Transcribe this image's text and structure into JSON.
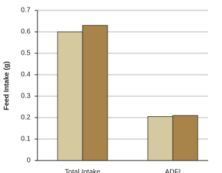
{
  "chart_data": {
    "type": "bar",
    "y_label": "Feed Intake (g)",
    "categories": [
      "Total Intake",
      "ADFI"
    ],
    "series": [
      {
        "color": "#d4c99f",
        "values": [
          0.6,
          0.205
        ]
      },
      {
        "color": "#a8844a",
        "values": [
          0.63,
          0.21
        ]
      }
    ],
    "ylim": [
      0,
      0.7
    ],
    "yticks": [
      0,
      0.1,
      0.2,
      0.3,
      0.4,
      0.5,
      0.6,
      0.7
    ],
    "grid": true
  }
}
